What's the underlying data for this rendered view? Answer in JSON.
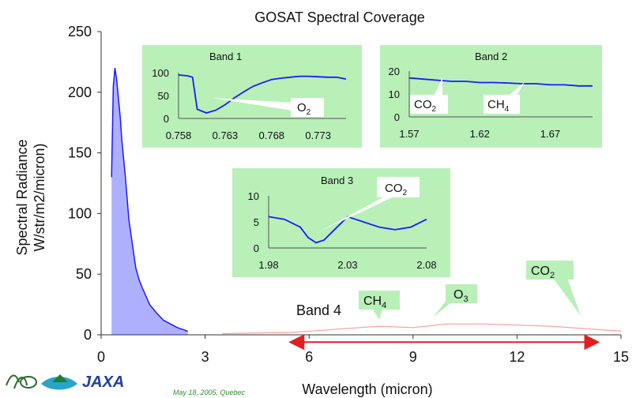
{
  "colors": {
    "spectrum_main": "#1a1aff",
    "spectrum_band4": "#ff9a9a",
    "inset_bg": "#b8f0b8",
    "arrow": "#e02020"
  },
  "chart_data": {
    "type": "line",
    "title": "GOSAT Spectral Coverage",
    "xlabel": "Wavelength (micron)",
    "ylabel": [
      "Spectral Radiance",
      "W/str/m2/micron)"
    ],
    "xlim": [
      0,
      15
    ],
    "ylim": [
      0,
      250
    ],
    "xticks": [
      "0",
      "3",
      "6",
      "9",
      "12",
      "15"
    ],
    "yticks": [
      "0",
      "50",
      "100",
      "150",
      "200",
      "250"
    ],
    "grid": false,
    "series": [
      {
        "x": [
          0.3,
          0.35,
          0.4,
          0.45,
          0.5,
          0.55,
          0.6,
          0.65,
          0.7,
          0.8,
          0.9,
          1.0,
          1.1,
          1.2,
          1.4,
          1.6,
          1.8,
          2.0,
          2.2,
          2.5
        ],
        "y": [
          130,
          205,
          220,
          210,
          195,
          180,
          160,
          145,
          130,
          95,
          75,
          55,
          45,
          38,
          25,
          18,
          12,
          9,
          6,
          3
        ]
      },
      {
        "x": [
          3.5,
          5.5,
          7.0,
          8.0,
          9.0,
          10.0,
          11.0,
          12.0,
          13.0,
          14.0,
          15.0
        ],
        "y": [
          1,
          2,
          5,
          7,
          6,
          9,
          9,
          8,
          7,
          5,
          3
        ]
      }
    ],
    "annotations": [
      {
        "label": "Band 4",
        "x": 8.0,
        "y": 25
      },
      {
        "label_main": "CH",
        "label_sub": "4",
        "x": 8.2,
        "y": 7
      },
      {
        "label_main": "O",
        "label_sub": "3",
        "x": 9.6,
        "y": 9
      },
      {
        "label_main": "CO",
        "label_sub": "2",
        "x": 14.0,
        "y": 5
      }
    ],
    "band4_range": [
      5.5,
      14.3
    ],
    "insets": [
      {
        "title": "Band 1",
        "xticks": [
          "0.758",
          "0.763",
          "0.768",
          "0.773"
        ],
        "yticks": [
          "0",
          "50",
          "100"
        ],
        "xlim": [
          0.758,
          0.776
        ],
        "ylim": [
          0,
          100
        ],
        "x": [
          0.758,
          0.759,
          0.7595,
          0.76,
          0.761,
          0.762,
          0.763,
          0.764,
          0.765,
          0.766,
          0.767,
          0.768,
          0.769,
          0.77,
          0.771,
          0.772,
          0.773,
          0.774,
          0.775,
          0.776
        ],
        "y": [
          95,
          93,
          90,
          20,
          12,
          18,
          30,
          45,
          58,
          70,
          78,
          85,
          88,
          90,
          92,
          92,
          91,
          90,
          90,
          86
        ],
        "absorber": {
          "main": "O",
          "sub": "2"
        }
      },
      {
        "title": "Band 2",
        "xticks": [
          "1.57",
          "1.62",
          "1.67"
        ],
        "yticks": [
          "0",
          "10",
          "20"
        ],
        "xlim": [
          1.57,
          1.7
        ],
        "ylim": [
          0,
          20
        ],
        "x": [
          1.57,
          1.58,
          1.59,
          1.6,
          1.61,
          1.62,
          1.63,
          1.64,
          1.65,
          1.66,
          1.67,
          1.68,
          1.69,
          1.7
        ],
        "y": [
          17,
          16.5,
          16,
          15.5,
          15.5,
          15,
          15,
          14.8,
          14.5,
          14.5,
          14,
          14,
          13.5,
          13.5
        ],
        "absorbers": [
          {
            "main": "CO",
            "sub": "2"
          },
          {
            "main": "CH",
            "sub": "4"
          }
        ]
      },
      {
        "title": "Band 3",
        "xticks": [
          "1.98",
          "2.03",
          "2.08"
        ],
        "yticks": [
          "0",
          "5",
          "10"
        ],
        "xlim": [
          1.98,
          2.08
        ],
        "ylim": [
          0,
          10
        ],
        "x": [
          1.98,
          1.99,
          2.0,
          2.005,
          2.01,
          2.015,
          2.02,
          2.025,
          2.03,
          2.035,
          2.04,
          2.045,
          2.05,
          2.06,
          2.07,
          2.08
        ],
        "y": [
          6,
          5.5,
          4,
          2,
          1,
          1.5,
          3,
          4.5,
          6,
          5.5,
          5,
          4.5,
          4,
          3.5,
          4,
          5.5
        ],
        "absorber": {
          "main": "CO",
          "sub": "2"
        }
      }
    ]
  },
  "footer": {
    "logo_jaxa": "JAXA",
    "caption": "May 18, 2005, Quebec"
  }
}
